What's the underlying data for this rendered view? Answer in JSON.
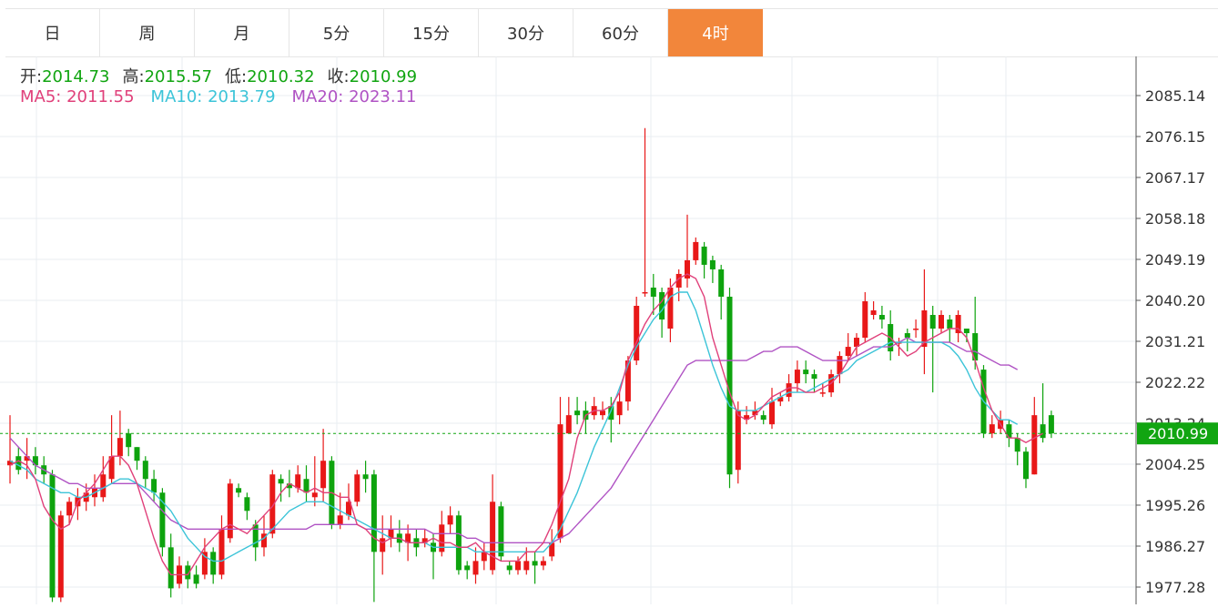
{
  "tabs": [
    {
      "label": "日",
      "active": false
    },
    {
      "label": "周",
      "active": false
    },
    {
      "label": "月",
      "active": false
    },
    {
      "label": "5分",
      "active": false
    },
    {
      "label": "15分",
      "active": false
    },
    {
      "label": "30分",
      "active": false
    },
    {
      "label": "60分",
      "active": false
    },
    {
      "label": "4时",
      "active": true
    }
  ],
  "ohlc": {
    "open_label": "开:",
    "open": "2014.73",
    "high_label": "高:",
    "high": "2015.57",
    "low_label": "低:",
    "low": "2010.32",
    "close_label": "收:",
    "close": "2010.99"
  },
  "ma": {
    "ma5_label": "MA5:",
    "ma5": "2011.55",
    "ma10_label": "MA10:",
    "ma10": "2013.79",
    "ma20_label": "MA20:",
    "ma20": "2023.11"
  },
  "colors": {
    "up": "#e81818",
    "down": "#0ea30e",
    "ma5": "#e0407a",
    "ma10": "#3cc4d8",
    "ma20": "#b053c4",
    "price_tag": "#11a511",
    "tab_active": "#f2863b"
  },
  "chart_data": {
    "type": "candlestick",
    "y_ticks": [
      "2085.14",
      "2076.15",
      "2067.17",
      "2058.18",
      "2049.19",
      "2040.20",
      "2031.21",
      "2022.22",
      "2013.24",
      "2004.25",
      "1995.26",
      "1986.27",
      "1977.28"
    ],
    "ylim": [
      1974.5,
      2089.0
    ],
    "current_price": "2010.99",
    "candles": [
      [
        2004,
        2005,
        2000,
        2015
      ],
      [
        2006,
        2003,
        2002,
        2008
      ],
      [
        2005,
        2006,
        2001,
        2010
      ],
      [
        2006,
        2004,
        2002,
        2008
      ],
      [
        2004,
        2002,
        2000,
        2006
      ],
      [
        2002,
        1975,
        1974,
        2003
      ],
      [
        1975,
        1993,
        1974,
        1994
      ],
      [
        1993,
        1996,
        1991,
        1997
      ],
      [
        1995,
        1997,
        1992,
        1999
      ],
      [
        1996,
        1998,
        1994,
        2000
      ],
      [
        1997,
        1999,
        1995,
        2002
      ],
      [
        1997,
        2002,
        1996,
        2006
      ],
      [
        2001,
        2006,
        2000,
        2015
      ],
      [
        2006,
        2010,
        2004,
        2016
      ],
      [
        2011,
        2008,
        2006,
        2012
      ],
      [
        2008,
        2005,
        2003,
        2008
      ],
      [
        2005,
        2001,
        1999,
        2006
      ],
      [
        2001,
        1998,
        1996,
        2003
      ],
      [
        1998,
        1986,
        1984,
        1999
      ],
      [
        1986,
        1977,
        1975,
        1989
      ],
      [
        1978,
        1982,
        1977,
        1984
      ],
      [
        1982,
        1979,
        1977,
        1983
      ],
      [
        1980,
        1978,
        1977,
        1982
      ],
      [
        1980,
        1985,
        1979,
        1988
      ],
      [
        1985,
        1980,
        1978,
        1986
      ],
      [
        1980,
        1990,
        1979,
        1993
      ],
      [
        1988,
        2000,
        1987,
        2001
      ],
      [
        1999,
        1998,
        1997,
        2000
      ],
      [
        1997,
        1994,
        1992,
        1998
      ],
      [
        1991,
        1986,
        1983,
        1992
      ],
      [
        1986,
        1989,
        1984,
        1993
      ],
      [
        1989,
        2002,
        1988,
        2003
      ],
      [
        2001,
        2000,
        1996,
        2002
      ],
      [
        2000,
        1999,
        1997,
        2003
      ],
      [
        1999,
        2002,
        1998,
        2004
      ],
      [
        2001,
        1998,
        1996,
        2004
      ],
      [
        1997,
        1998,
        1995,
        2006
      ],
      [
        1999,
        2005,
        1996,
        2012
      ],
      [
        2005,
        1991,
        1990,
        2006
      ],
      [
        1991,
        1993,
        1990,
        1998
      ],
      [
        1993,
        1996,
        1992,
        2000
      ],
      [
        1996,
        2002,
        1995,
        2003
      ],
      [
        2002,
        2001,
        1998,
        2005
      ],
      [
        2002,
        1985,
        1974,
        2003
      ],
      [
        1985,
        1988,
        1980,
        1993
      ],
      [
        1988,
        1990,
        1986,
        1993
      ],
      [
        1989,
        1987,
        1985,
        1992
      ],
      [
        1987,
        1989,
        1983,
        1991
      ],
      [
        1988,
        1986,
        1984,
        1990
      ],
      [
        1987,
        1988,
        1986,
        1990
      ],
      [
        1987,
        1985,
        1979,
        1989
      ],
      [
        1985,
        1991,
        1984,
        1994
      ],
      [
        1991,
        1993,
        1989,
        1995
      ],
      [
        1993,
        1981,
        1980,
        1994
      ],
      [
        1982,
        1981,
        1979,
        1983
      ],
      [
        1980,
        1983,
        1978,
        1986
      ],
      [
        1983,
        1985,
        1981,
        1987
      ],
      [
        1981,
        1996,
        1980,
        2002
      ],
      [
        1995,
        1984,
        1983,
        1996
      ],
      [
        1982,
        1981,
        1980,
        1983
      ],
      [
        1981,
        1983,
        1980,
        1984
      ],
      [
        1981,
        1983,
        1980,
        1986
      ],
      [
        1983,
        1982,
        1978,
        1985
      ],
      [
        1982,
        1983,
        1981,
        1984
      ],
      [
        1984,
        1987,
        1983,
        1990
      ],
      [
        1988,
        2013,
        1987,
        2019
      ],
      [
        2011,
        2015,
        2012,
        2019
      ],
      [
        2016,
        2015,
        2013,
        2019
      ],
      [
        2016,
        2014,
        2011,
        2018
      ],
      [
        2015,
        2017,
        2014,
        2019
      ],
      [
        2015,
        2016,
        2014,
        2018
      ],
      [
        2017,
        2014,
        2009,
        2019
      ],
      [
        2015,
        2018,
        2013,
        2020
      ],
      [
        2018,
        2027,
        2016,
        2028
      ],
      [
        2027,
        2039,
        2026,
        2041
      ],
      [
        2042,
        2042,
        2041,
        2078
      ],
      [
        2043,
        2041,
        2037,
        2046
      ],
      [
        2042,
        2036,
        2032,
        2043
      ],
      [
        2034,
        2043,
        2031,
        2045
      ],
      [
        2043,
        2046,
        2040,
        2047
      ],
      [
        2045,
        2049,
        2043,
        2059
      ],
      [
        2049,
        2053,
        2048,
        2054
      ],
      [
        2052,
        2048,
        2045,
        2053
      ],
      [
        2049,
        2047,
        2044,
        2050
      ],
      [
        2047,
        2041,
        2036,
        2048
      ],
      [
        2041,
        2002,
        1999,
        2043
      ],
      [
        2003,
        2016,
        2000,
        2018
      ],
      [
        2014,
        2015,
        2013,
        2017
      ],
      [
        2015,
        2016,
        2014,
        2018
      ],
      [
        2015,
        2014,
        2013,
        2016
      ],
      [
        2013,
        2018,
        2012,
        2021
      ],
      [
        2018,
        2019,
        2017,
        2020
      ],
      [
        2019,
        2022,
        2018,
        2024
      ],
      [
        2022,
        2025,
        2020,
        2027
      ],
      [
        2025,
        2024,
        2022,
        2027
      ],
      [
        2024,
        2023,
        2020,
        2025
      ],
      [
        2020,
        2020,
        2019,
        2022
      ],
      [
        2020,
        2024,
        2019,
        2025
      ],
      [
        2024,
        2028,
        2022,
        2029
      ],
      [
        2028,
        2030,
        2027,
        2033
      ],
      [
        2030,
        2032,
        2028,
        2033
      ],
      [
        2032,
        2040,
        2031,
        2042
      ],
      [
        2037,
        2038,
        2036,
        2040
      ],
      [
        2037,
        2036,
        2034,
        2039
      ],
      [
        2035,
        2029,
        2027,
        2038
      ],
      [
        2031,
        2031,
        2028,
        2032
      ],
      [
        2033,
        2032,
        2029,
        2034
      ],
      [
        2034,
        2034,
        2032,
        2036
      ],
      [
        2030,
        2038,
        2024,
        2047
      ],
      [
        2037,
        2034,
        2020,
        2039
      ],
      [
        2034,
        2037,
        2033,
        2038
      ],
      [
        2036,
        2034,
        2031,
        2037
      ],
      [
        2033,
        2037,
        2031,
        2038
      ],
      [
        2034,
        2033,
        2031,
        2034
      ],
      [
        2033,
        2027,
        2025,
        2041
      ],
      [
        2025,
        2011,
        2010,
        2026
      ],
      [
        2011,
        2013,
        2010,
        2015
      ],
      [
        2012,
        2014,
        2011,
        2016
      ],
      [
        2013,
        2010,
        2008,
        2014
      ],
      [
        2010,
        2007,
        2004,
        2011
      ],
      [
        2007,
        2001,
        1999,
        2008
      ],
      [
        2002,
        2015,
        2002,
        2019
      ],
      [
        2013,
        2010,
        2009,
        2022
      ],
      [
        2015,
        2011,
        2010,
        2016
      ]
    ],
    "ma5": [
      2004,
      2005,
      2004,
      2001,
      1995,
      1992,
      1990,
      1991,
      1996,
      1998,
      2000,
      2003,
      2006,
      2006,
      2004,
      2000,
      1994,
      1988,
      1983,
      1980,
      1980,
      1980,
      1983,
      1986,
      1988,
      1990,
      1991,
      1990,
      1989,
      1991,
      1993,
      1995,
      1998,
      2000,
      1999,
      1998,
      1999,
      1998,
      1998,
      1997,
      1997,
      1991,
      1990,
      1988,
      1987,
      1988,
      1988,
      1987,
      1987,
      1987,
      1988,
      1987,
      1987,
      1986,
      1986,
      1987,
      1985,
      1984,
      1983,
      1983,
      1983,
      1985,
      1985,
      1987,
      1991,
      1996,
      2001,
      2010,
      2015,
      2016,
      2016,
      2017,
      2020,
      2027,
      2031,
      2035,
      2038,
      2040,
      2043,
      2045,
      2046,
      2045,
      2041,
      2032,
      2026,
      2020,
      2015,
      2014,
      2015,
      2017,
      2019,
      2020,
      2021,
      2021,
      2020,
      2020,
      2021,
      2022,
      2024,
      2027,
      2030,
      2031,
      2032,
      2033,
      2032,
      2030,
      2028,
      2029,
      2031,
      2032,
      2033,
      2034,
      2034,
      2032,
      2027,
      2021,
      2016,
      2013,
      2010,
      2010,
      2009,
      2010,
      2011
    ],
    "ma10": [
      2005,
      2004,
      2003,
      2001,
      2000,
      1999,
      1998,
      1998,
      1997,
      1997,
      1998,
      1999,
      2000,
      2001,
      2001,
      2000,
      1999,
      1998,
      1996,
      1994,
      1991,
      1988,
      1986,
      1984,
      1983,
      1983,
      1984,
      1985,
      1986,
      1987,
      1988,
      1990,
      1992,
      1994,
      1995,
      1996,
      1996,
      1996,
      1995,
      1994,
      1993,
      1992,
      1991,
      1990,
      1989,
      1988,
      1988,
      1987,
      1987,
      1987,
      1986,
      1986,
      1986,
      1986,
      1986,
      1985,
      1985,
      1985,
      1985,
      1985,
      1985,
      1985,
      1985,
      1985,
      1987,
      1990,
      1994,
      1998,
      2003,
      2008,
      2012,
      2016,
      2021,
      2026,
      2030,
      2033,
      2036,
      2038,
      2041,
      2042,
      2042,
      2038,
      2032,
      2026,
      2021,
      2017,
      2016,
      2016,
      2016,
      2017,
      2018,
      2019,
      2020,
      2020,
      2020,
      2021,
      2022,
      2023,
      2024,
      2025,
      2027,
      2028,
      2029,
      2030,
      2031,
      2031,
      2031,
      2031,
      2031,
      2031,
      2031,
      2030,
      2028,
      2025,
      2021,
      2018,
      2016,
      2014,
      2014,
      2013
    ],
    "ma20": [
      2010,
      2008,
      2006,
      2004,
      2003,
      2002,
      2001,
      2000,
      2000,
      1999,
      1999,
      1999,
      2000,
      2000,
      2000,
      2000,
      1998,
      1996,
      1994,
      1992,
      1991,
      1990,
      1990,
      1990,
      1990,
      1990,
      1990,
      1990,
      1990,
      1990,
      1990,
      1990,
      1990,
      1990,
      1990,
      1990,
      1991,
      1991,
      1991,
      1991,
      1991,
      1991,
      1990,
      1990,
      1990,
      1990,
      1990,
      1990,
      1990,
      1990,
      1989,
      1989,
      1989,
      1989,
      1988,
      1988,
      1987,
      1987,
      1987,
      1987,
      1987,
      1987,
      1987,
      1987,
      1987,
      1988,
      1989,
      1991,
      1993,
      1995,
      1997,
      1999,
      2002,
      2005,
      2008,
      2011,
      2014,
      2017,
      2020,
      2023,
      2026,
      2027,
      2027,
      2027,
      2027,
      2027,
      2027,
      2027,
      2028,
      2029,
      2029,
      2030,
      2030,
      2030,
      2029,
      2028,
      2027,
      2027,
      2027,
      2027,
      2028,
      2029,
      2030,
      2030,
      2030,
      2031,
      2032,
      2031,
      2031,
      2031,
      2031,
      2031,
      2030,
      2029,
      2029,
      2028,
      2027,
      2026,
      2026,
      2025
    ],
    "gridline_x": [
      40,
      200,
      370,
      545,
      715,
      870,
      1030,
      1105
    ]
  }
}
